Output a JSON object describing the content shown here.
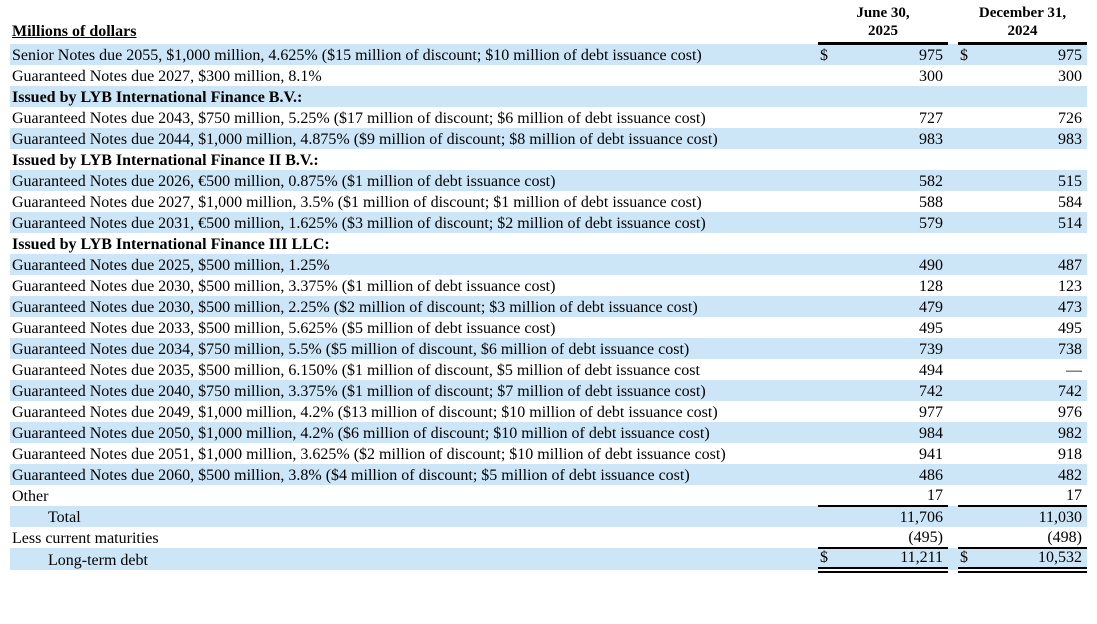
{
  "page": {
    "background_color": "#ffffff",
    "shaded_row_color": "#cce6f7",
    "text_color": "#000000"
  },
  "table": {
    "unit_label": "Millions of dollars",
    "columns": [
      "June 30,\n2025",
      "December 31,\n2024"
    ],
    "rows": [
      {
        "label": "Senior Notes due 2055, $1,000 million, 4.625% ($15 million of discount; $10 million of debt issuance cost)",
        "bold": false,
        "indent": 0,
        "shaded": true,
        "cur1": "$",
        "jun": "975",
        "cur2": "$",
        "dec": "975",
        "rule": "none"
      },
      {
        "label": "Guaranteed Notes due 2027, $300 million, 8.1%",
        "bold": false,
        "indent": 0,
        "shaded": false,
        "cur1": "",
        "jun": "300",
        "cur2": "",
        "dec": "300",
        "rule": "none"
      },
      {
        "label": "Issued by LYB International Finance B.V.:",
        "bold": true,
        "indent": 0,
        "shaded": true,
        "cur1": "",
        "jun": "",
        "cur2": "",
        "dec": "",
        "rule": "none"
      },
      {
        "label": "Guaranteed Notes due 2043, $750 million, 5.25% ($17 million of discount; $6 million of debt issuance cost)",
        "bold": false,
        "indent": 0,
        "shaded": false,
        "cur1": "",
        "jun": "727",
        "cur2": "",
        "dec": "726",
        "rule": "none"
      },
      {
        "label": "Guaranteed Notes due 2044, $1,000 million, 4.875% ($9 million of discount; $8 million of debt issuance cost)",
        "bold": false,
        "indent": 0,
        "shaded": true,
        "cur1": "",
        "jun": "983",
        "cur2": "",
        "dec": "983",
        "rule": "none"
      },
      {
        "label": "Issued by LYB International Finance II B.V.:",
        "bold": true,
        "indent": 0,
        "shaded": false,
        "cur1": "",
        "jun": "",
        "cur2": "",
        "dec": "",
        "rule": "none"
      },
      {
        "label": "Guaranteed Notes due 2026, €500 million, 0.875% ($1 million of debt issuance cost)",
        "bold": false,
        "indent": 0,
        "shaded": true,
        "cur1": "",
        "jun": "582",
        "cur2": "",
        "dec": "515",
        "rule": "none"
      },
      {
        "label": "Guaranteed Notes due 2027, $1,000 million, 3.5% ($1 million of discount; $1 million of debt issuance cost)",
        "bold": false,
        "indent": 0,
        "shaded": false,
        "cur1": "",
        "jun": "588",
        "cur2": "",
        "dec": "584",
        "rule": "none"
      },
      {
        "label": "Guaranteed Notes due 2031, €500 million, 1.625% ($3 million of discount; $2 million of debt issuance cost)",
        "bold": false,
        "indent": 0,
        "shaded": true,
        "cur1": "",
        "jun": "579",
        "cur2": "",
        "dec": "514",
        "rule": "none"
      },
      {
        "label": "Issued by LYB International Finance III LLC:",
        "bold": true,
        "indent": 0,
        "shaded": false,
        "cur1": "",
        "jun": "",
        "cur2": "",
        "dec": "",
        "rule": "none"
      },
      {
        "label": "Guaranteed Notes due 2025, $500 million, 1.25%",
        "bold": false,
        "indent": 0,
        "shaded": true,
        "cur1": "",
        "jun": "490",
        "cur2": "",
        "dec": "487",
        "rule": "none"
      },
      {
        "label": "Guaranteed Notes due 2030, $500 million, 3.375% ($1 million of debt issuance cost)",
        "bold": false,
        "indent": 0,
        "shaded": false,
        "cur1": "",
        "jun": "128",
        "cur2": "",
        "dec": "123",
        "rule": "none"
      },
      {
        "label": "Guaranteed Notes due 2030, $500 million, 2.25% ($2 million of discount; $3 million of debt issuance cost)",
        "bold": false,
        "indent": 0,
        "shaded": true,
        "cur1": "",
        "jun": "479",
        "cur2": "",
        "dec": "473",
        "rule": "none"
      },
      {
        "label": "Guaranteed Notes due 2033, $500 million, 5.625% ($5 million of debt issuance cost)",
        "bold": false,
        "indent": 0,
        "shaded": false,
        "cur1": "",
        "jun": "495",
        "cur2": "",
        "dec": "495",
        "rule": "none"
      },
      {
        "label": "Guaranteed Notes due 2034, $750 million, 5.5% ($5 million of discount, $6 million of debt issuance cost)",
        "bold": false,
        "indent": 0,
        "shaded": true,
        "cur1": "",
        "jun": "739",
        "cur2": "",
        "dec": "738",
        "rule": "none"
      },
      {
        "label": "Guaranteed Notes due 2035, $500 million, 6.150% ($1 million of discount, $5 million of debt issuance cost",
        "bold": false,
        "indent": 0,
        "shaded": false,
        "cur1": "",
        "jun": "494",
        "cur2": "",
        "dec": "—",
        "rule": "none"
      },
      {
        "label": "Guaranteed Notes due 2040, $750 million, 3.375% ($1 million of discount; $7 million of debt issuance cost)",
        "bold": false,
        "indent": 0,
        "shaded": true,
        "cur1": "",
        "jun": "742",
        "cur2": "",
        "dec": "742",
        "rule": "none"
      },
      {
        "label": "Guaranteed Notes due 2049, $1,000 million, 4.2% ($13 million of discount; $10 million of debt issuance cost)",
        "bold": false,
        "indent": 0,
        "shaded": false,
        "cur1": "",
        "jun": "977",
        "cur2": "",
        "dec": "976",
        "rule": "none"
      },
      {
        "label": "Guaranteed Notes due 2050, $1,000 million, 4.2% ($6 million of discount; $10 million of debt issuance cost)",
        "bold": false,
        "indent": 0,
        "shaded": true,
        "cur1": "",
        "jun": "984",
        "cur2": "",
        "dec": "982",
        "rule": "none"
      },
      {
        "label": "Guaranteed Notes due 2051, $1,000 million, 3.625% ($2 million of discount; $10 million of debt issuance cost)",
        "bold": false,
        "indent": 0,
        "shaded": false,
        "cur1": "",
        "jun": "941",
        "cur2": "",
        "dec": "918",
        "rule": "none"
      },
      {
        "label": "Guaranteed Notes due 2060, $500 million, 3.8% ($4 million of discount; $5 million of debt issuance cost)",
        "bold": false,
        "indent": 0,
        "shaded": true,
        "cur1": "",
        "jun": "486",
        "cur2": "",
        "dec": "482",
        "rule": "none"
      },
      {
        "label": "Other",
        "bold": false,
        "indent": 0,
        "shaded": false,
        "cur1": "",
        "jun": "17",
        "cur2": "",
        "dec": "17",
        "rule": "single"
      },
      {
        "label": "Total",
        "bold": false,
        "indent": 1,
        "shaded": true,
        "cur1": "",
        "jun": "11,706",
        "cur2": "",
        "dec": "11,030",
        "rule": "none"
      },
      {
        "label": "Less current maturities",
        "bold": false,
        "indent": 0,
        "shaded": false,
        "cur1": "",
        "jun": "(495)",
        "cur2": "",
        "dec": "(498)",
        "rule": "single"
      },
      {
        "label": "Long-term debt",
        "bold": false,
        "indent": 1,
        "shaded": true,
        "cur1": "$",
        "jun": "11,211",
        "cur2": "$",
        "dec": "10,532",
        "rule": "double"
      }
    ]
  }
}
